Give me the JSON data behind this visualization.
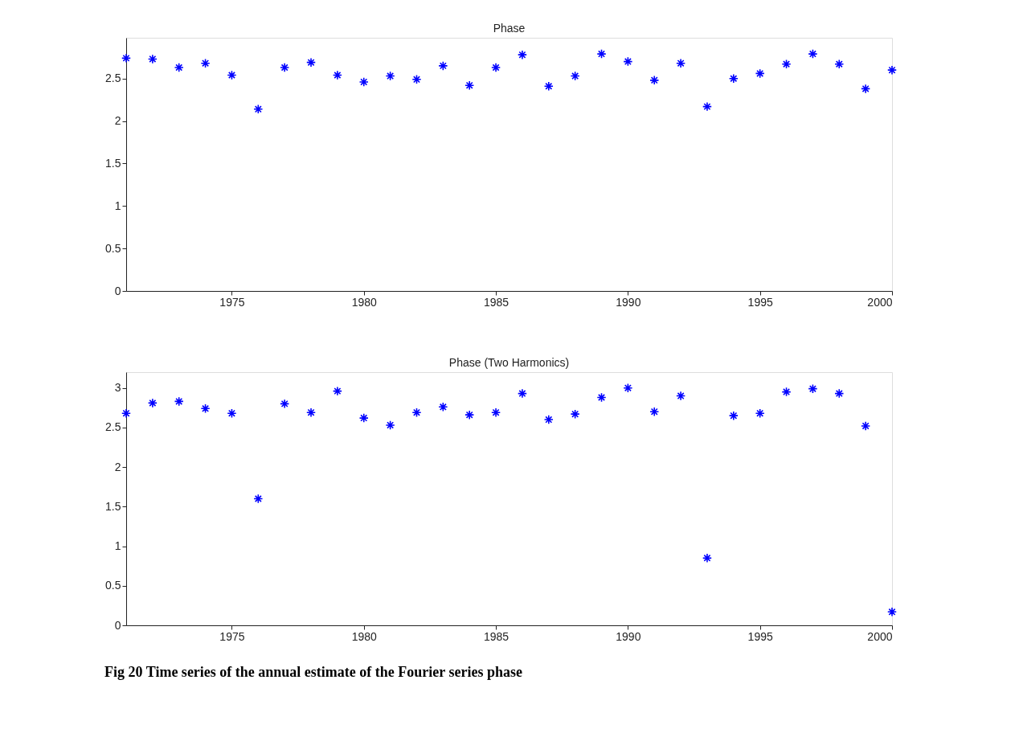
{
  "chart_data": [
    {
      "type": "scatter",
      "title": "Phase",
      "marker": "cross",
      "xlim": [
        1971,
        2000
      ],
      "xticks": [
        1975,
        1980,
        1985,
        1990,
        1995,
        2000
      ],
      "ylim": [
        0,
        2.98
      ],
      "yticks": [
        0,
        0.5,
        1,
        1.5,
        2,
        2.5
      ],
      "x": [
        1971,
        1972,
        1973,
        1974,
        1975,
        1976,
        1977,
        1978,
        1979,
        1980,
        1981,
        1982,
        1983,
        1984,
        1985,
        1986,
        1987,
        1988,
        1989,
        1990,
        1991,
        1992,
        1993,
        1994,
        1995,
        1996,
        1997,
        1998,
        1999,
        2000
      ],
      "series": [
        {
          "color": "#0000ff",
          "values": [
            2.74,
            2.73,
            2.63,
            2.68,
            2.54,
            2.14,
            2.63,
            2.69,
            2.54,
            2.46,
            2.53,
            2.49,
            2.65,
            2.42,
            2.63,
            2.78,
            2.41,
            2.53,
            2.79,
            2.7,
            2.48,
            2.68,
            2.17,
            2.5,
            2.56,
            2.67,
            2.79,
            2.67,
            2.38,
            2.6
          ]
        }
      ]
    },
    {
      "type": "scatter",
      "title": "Phase (Two Harmonics)",
      "marker": "cross",
      "xlim": [
        1971,
        2000
      ],
      "xticks": [
        1975,
        1980,
        1985,
        1990,
        1995,
        2000
      ],
      "ylim": [
        0,
        3.2
      ],
      "yticks": [
        0,
        0.5,
        1,
        1.5,
        2,
        2.5,
        3
      ],
      "x": [
        1971,
        1972,
        1973,
        1974,
        1975,
        1976,
        1977,
        1978,
        1979,
        1980,
        1981,
        1982,
        1983,
        1984,
        1985,
        1986,
        1987,
        1988,
        1989,
        1990,
        1991,
        1992,
        1993,
        1994,
        1995,
        1996,
        1997,
        1998,
        1999,
        2000
      ],
      "series": [
        {
          "color": "#0000ff",
          "values": [
            2.68,
            2.81,
            2.83,
            2.74,
            2.68,
            1.6,
            2.8,
            2.69,
            2.96,
            2.62,
            2.53,
            2.69,
            2.76,
            2.66,
            2.69,
            2.93,
            2.6,
            2.67,
            2.88,
            3.0,
            2.7,
            2.9,
            0.85,
            2.65,
            2.68,
            2.95,
            2.99,
            2.93,
            2.52,
            0.17
          ]
        }
      ],
      "annotations": [
        "Fig 20 Time series of the annual estimate of the Fourier series phase"
      ]
    }
  ]
}
